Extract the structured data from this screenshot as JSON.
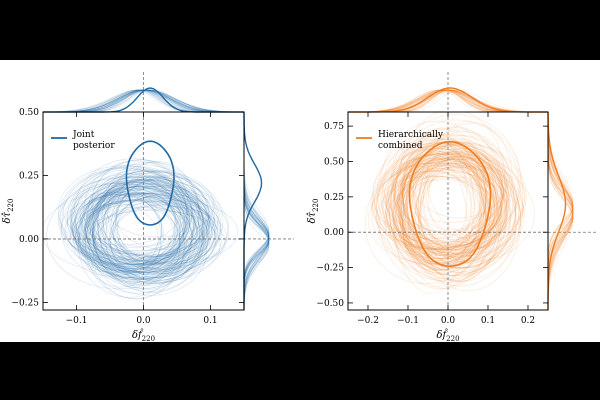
{
  "chart_data": [
    {
      "type": "scatter",
      "legend": {
        "label_line1": "Joint",
        "label_line2": "posterior",
        "placement": "top-left"
      },
      "color": "#1f6aa5",
      "xlabel": "δf̂",
      "xlabel_sub": "220",
      "ylabel": "δτ̂",
      "ylabel_sub": "220",
      "xlim": [
        -0.15,
        0.15
      ],
      "ylim": [
        -0.28,
        0.5
      ],
      "xticks": [
        -0.1,
        0.0,
        0.1
      ],
      "xtick_labels": [
        "−0.1",
        "0.0",
        "0.1"
      ],
      "yticks": [
        -0.25,
        0.0,
        0.25,
        0.5
      ],
      "ytick_labels": [
        "−0.25",
        "0.00",
        "0.25",
        "0.50"
      ],
      "contour_center": [
        0.01,
        0.22
      ],
      "contour_radii": [
        0.035,
        0.165
      ],
      "cloud_center": [
        0.0,
        0.05
      ],
      "cloud_radii": [
        0.1,
        0.2
      ]
    },
    {
      "type": "scatter",
      "legend": {
        "label_line1": "Hierarchically",
        "label_line2": "combined",
        "placement": "top-left"
      },
      "color": "#f07c1e",
      "xlabel": "δf̂",
      "xlabel_sub": "220",
      "ylabel": "δτ̂",
      "ylabel_sub": "220",
      "xlim": [
        -0.25,
        0.25
      ],
      "ylim": [
        -0.55,
        0.85
      ],
      "xticks": [
        -0.2,
        -0.1,
        0.0,
        0.1,
        0.2
      ],
      "xtick_labels": [
        "−0.2",
        "−0.1",
        "0.0",
        "0.1",
        "0.2"
      ],
      "yticks": [
        -0.5,
        -0.25,
        0.0,
        0.25,
        0.5,
        0.75
      ],
      "ytick_labels": [
        "−0.50",
        "−0.25",
        "0.00",
        "0.25",
        "0.50",
        "0.75"
      ],
      "contour_center": [
        0.005,
        0.2
      ],
      "contour_radii": [
        0.1,
        0.44
      ],
      "cloud_center": [
        0.0,
        0.2
      ],
      "cloud_radii": [
        0.15,
        0.45
      ]
    }
  ]
}
